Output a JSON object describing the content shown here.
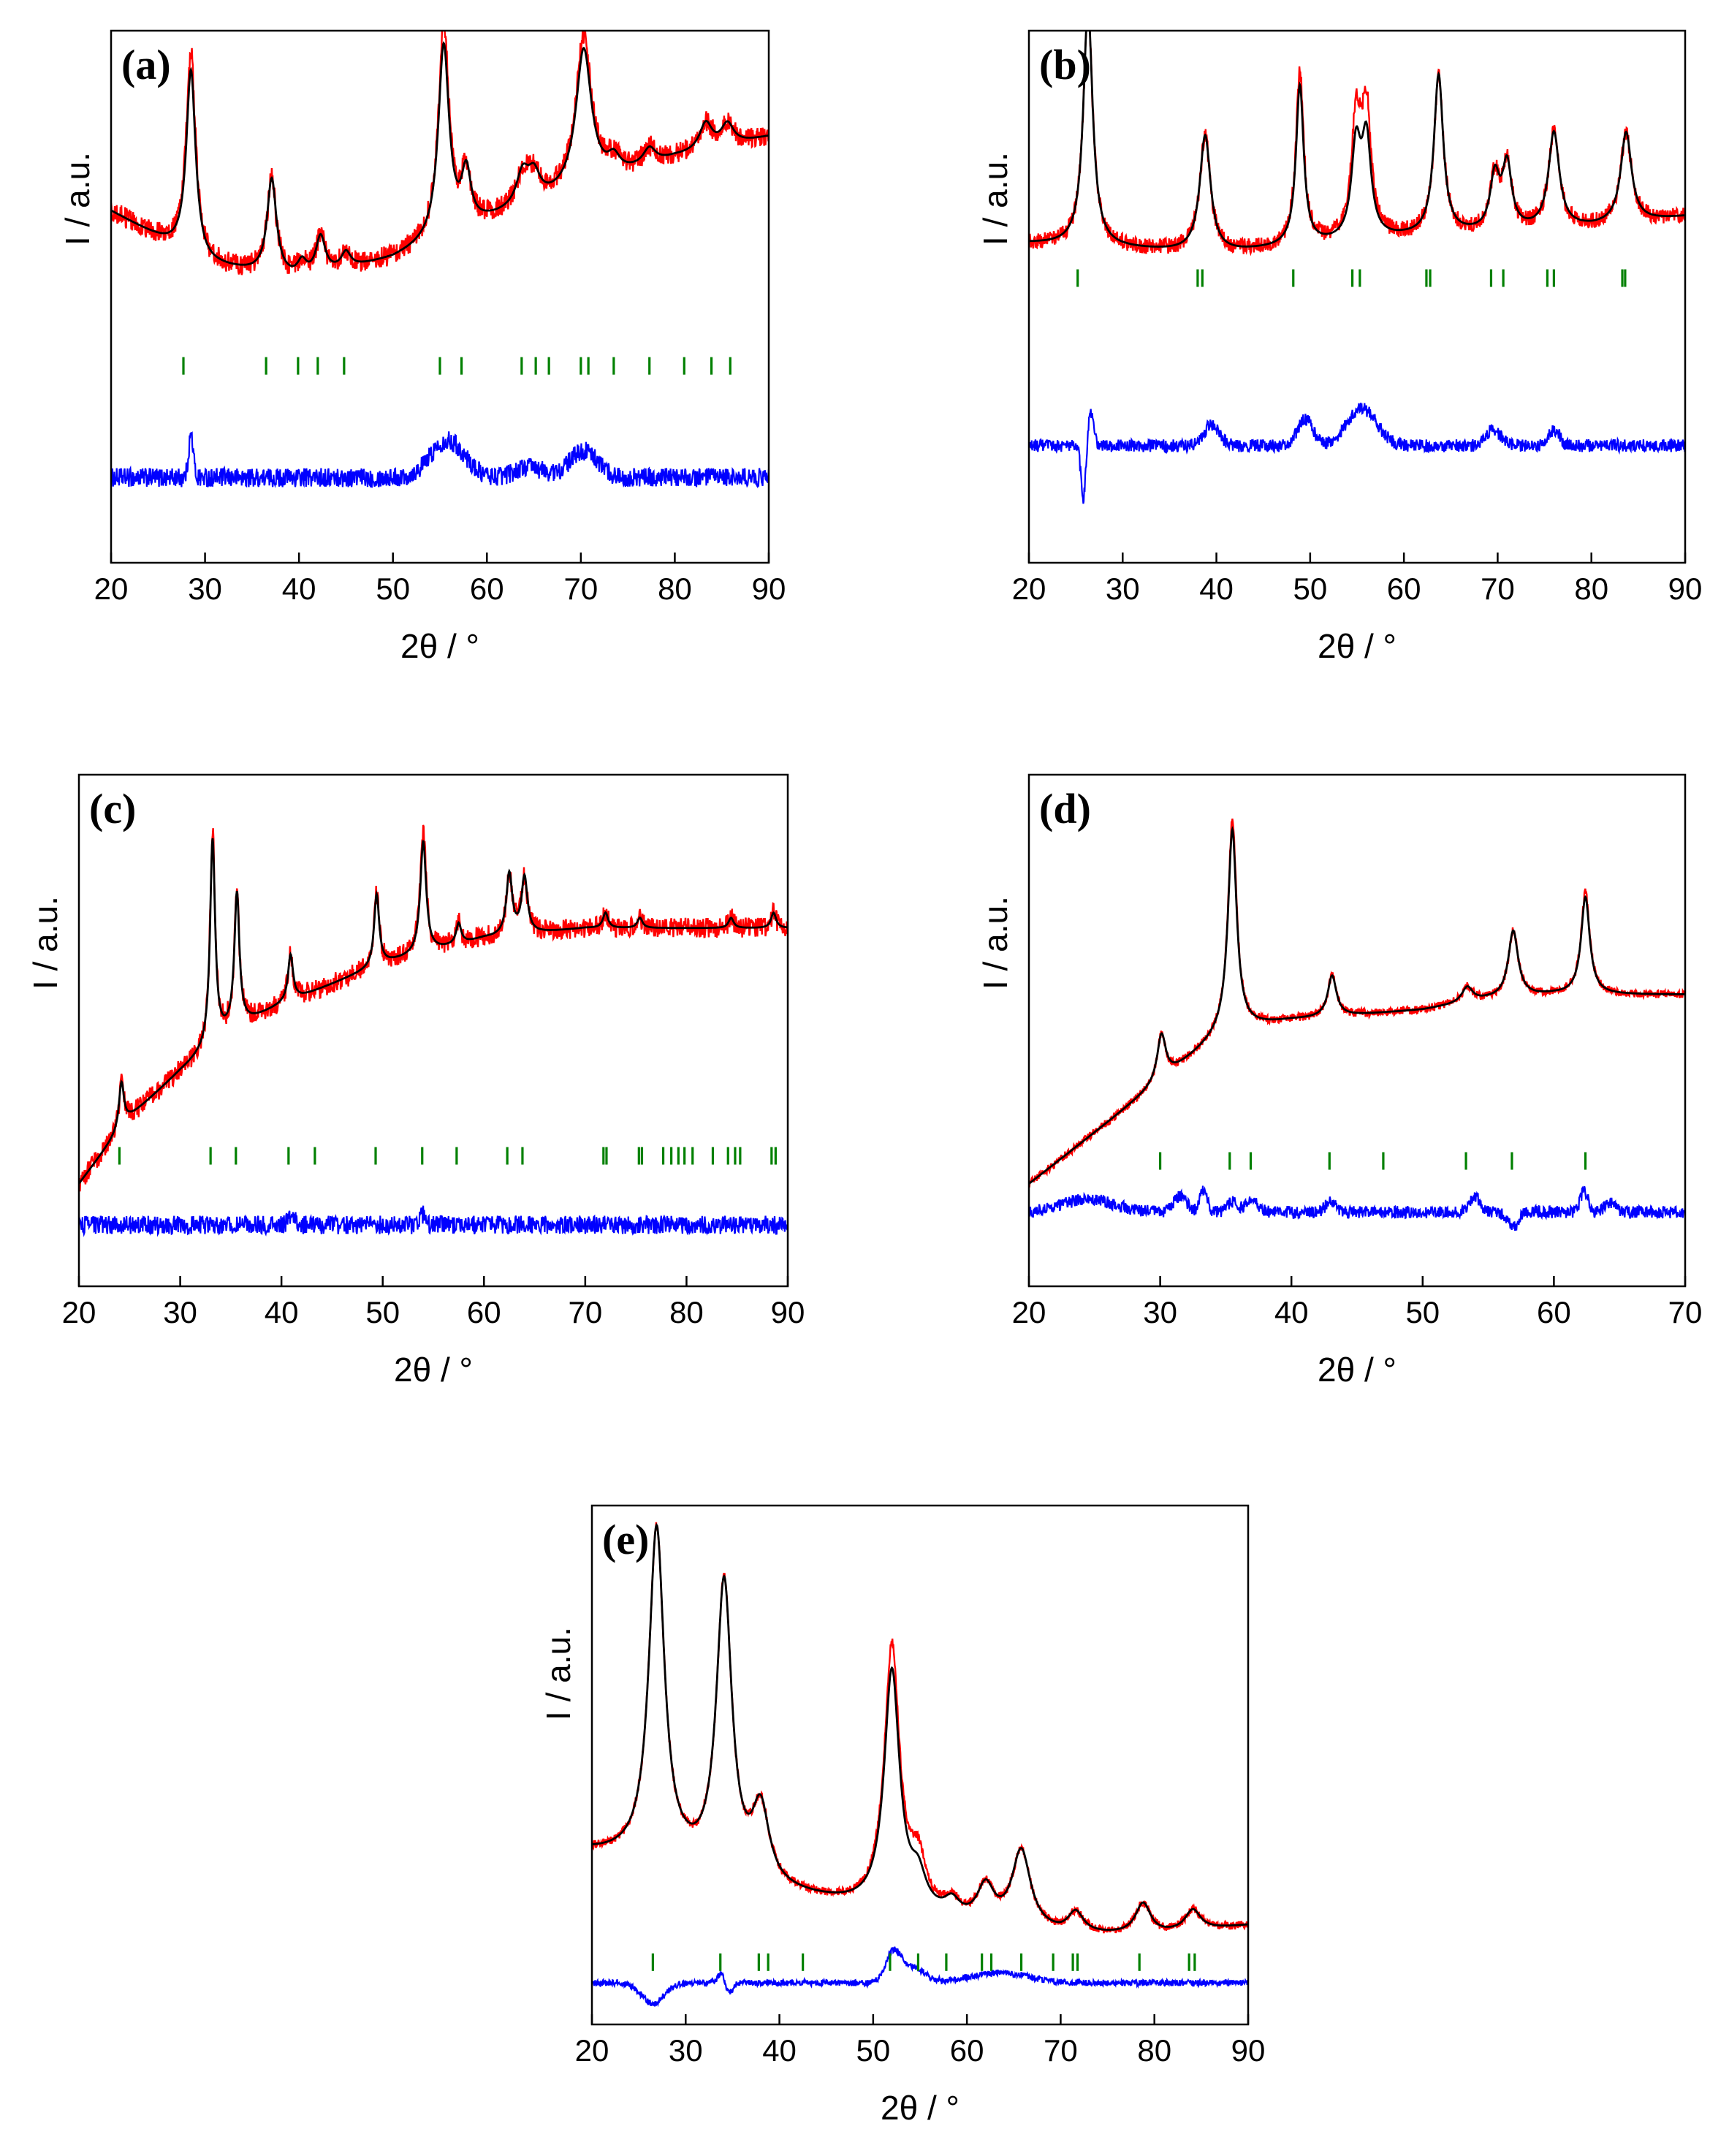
{
  "figure_description_note": "",
  "colors": {
    "observed": "#ff0000",
    "calculated": "#000000",
    "difference": "#0000ff",
    "bragg": "#008000"
  },
  "chart_data": [
    {
      "type": "line",
      "panel": "(a)",
      "xlabel": "2θ / °",
      "ylabel": "I / a.u.",
      "xlim": [
        20,
        90
      ],
      "xticks": [
        20,
        30,
        40,
        50,
        60,
        70,
        80,
        90
      ],
      "series_names": [
        "observed",
        "calculated",
        "difference",
        "Bragg positions"
      ],
      "background": [
        [
          20,
          0.66
        ],
        [
          30,
          0.56
        ],
        [
          40,
          0.53
        ],
        [
          50,
          0.57
        ],
        [
          60,
          0.64
        ],
        [
          70,
          0.7
        ],
        [
          80,
          0.76
        ],
        [
          90,
          0.8
        ]
      ],
      "peaks": [
        [
          28.5,
          0.35,
          0.6
        ],
        [
          37.1,
          0.18,
          0.6
        ],
        [
          40.3,
          0.03,
          0.6
        ],
        [
          42.3,
          0.07,
          0.6
        ],
        [
          45.0,
          0.03,
          0.6
        ],
        [
          55.4,
          0.36,
          0.7
        ],
        [
          57.8,
          0.1,
          0.6
        ],
        [
          63.8,
          0.06,
          0.8
        ],
        [
          65.0,
          0.05,
          0.8
        ],
        [
          70.3,
          0.26,
          1.0
        ],
        [
          73.5,
          0.03,
          0.8
        ],
        [
          77.3,
          0.03,
          0.8
        ],
        [
          83.3,
          0.05,
          0.8
        ],
        [
          85.6,
          0.04,
          0.8
        ]
      ],
      "bragg": [
        27.7,
        36.5,
        39.9,
        42.0,
        44.8,
        55.0,
        57.3,
        63.7,
        65.2,
        66.6,
        70.0,
        70.8,
        73.5,
        77.3,
        81.0,
        83.9,
        85.9
      ],
      "bragg_y": 0.37,
      "diff_base": 0.16,
      "diff_noise": 0.018,
      "diff_features": [
        [
          28.5,
          0.08,
          0.25
        ],
        [
          55.8,
          0.07,
          1.8
        ],
        [
          70.3,
          0.05,
          1.5
        ],
        [
          64.5,
          0.02,
          1.5
        ]
      ],
      "obs_noise": 0.02,
      "obs_scale": [
        [
          28.5,
          1.1
        ],
        [
          55.4,
          1.1
        ],
        [
          70.3,
          1.1
        ]
      ]
    },
    {
      "type": "line",
      "panel": "(b)",
      "xlabel": "2θ / °",
      "ylabel": "I / a.u.",
      "xlim": [
        20,
        90
      ],
      "xticks": [
        20,
        30,
        40,
        50,
        60,
        70,
        80,
        90
      ],
      "series_names": [
        "observed",
        "calculated",
        "difference",
        "Bragg positions"
      ],
      "background": [
        [
          20,
          0.6
        ],
        [
          40,
          0.58
        ],
        [
          60,
          0.61
        ],
        [
          80,
          0.63
        ],
        [
          90,
          0.65
        ]
      ],
      "peaks": [
        [
          26.3,
          0.45,
          0.6
        ],
        [
          38.8,
          0.22,
          0.7
        ],
        [
          48.9,
          0.3,
          0.5
        ],
        [
          54.9,
          0.17,
          0.6
        ],
        [
          56.0,
          0.18,
          0.6
        ],
        [
          63.7,
          0.3,
          0.6
        ],
        [
          69.7,
          0.1,
          0.6
        ],
        [
          71.0,
          0.12,
          0.6
        ],
        [
          76.0,
          0.18,
          0.7
        ],
        [
          83.7,
          0.17,
          0.7
        ]
      ],
      "bragg": [
        25.2,
        38.0,
        38.5,
        48.2,
        54.5,
        55.3,
        62.4,
        62.8,
        69.3,
        70.6,
        75.3,
        76.0,
        83.3,
        83.6
      ],
      "bragg_y": 0.535,
      "diff_base": 0.22,
      "diff_noise": 0.012,
      "diff_features": [
        [
          25.8,
          -0.1,
          0.25
        ],
        [
          26.6,
          0.06,
          0.3
        ],
        [
          39.5,
          0.04,
          0.8
        ],
        [
          49.5,
          0.05,
          0.8
        ],
        [
          55.5,
          0.07,
          1.6
        ],
        [
          69.5,
          0.03,
          0.8
        ],
        [
          76.0,
          0.03,
          0.6
        ]
      ],
      "obs_noise": 0.015,
      "obs_scale": [
        [
          48.9,
          1.1
        ],
        [
          54.9,
          1.3
        ],
        [
          56.0,
          1.3
        ]
      ]
    },
    {
      "type": "line",
      "panel": "(c)",
      "xlabel": "2θ / °",
      "ylabel": "I / a.u.",
      "xlim": [
        20,
        90
      ],
      "xticks": [
        20,
        30,
        40,
        50,
        60,
        70,
        80,
        90
      ],
      "series_names": [
        "observed",
        "calculated",
        "difference",
        "Bragg positions"
      ],
      "background": [
        [
          20,
          0.2
        ],
        [
          25,
          0.33
        ],
        [
          30,
          0.42
        ],
        [
          35,
          0.5
        ],
        [
          40,
          0.55
        ],
        [
          50,
          0.63
        ],
        [
          60,
          0.68
        ],
        [
          70,
          0.7
        ],
        [
          90,
          0.7
        ]
      ],
      "peaks": [
        [
          24.2,
          0.09,
          0.3
        ],
        [
          33.2,
          0.4,
          0.3
        ],
        [
          35.6,
          0.26,
          0.3
        ],
        [
          40.9,
          0.09,
          0.3
        ],
        [
          49.4,
          0.14,
          0.3
        ],
        [
          54.0,
          0.22,
          0.35
        ],
        [
          57.5,
          0.04,
          0.3
        ],
        [
          62.5,
          0.12,
          0.35
        ],
        [
          64.0,
          0.11,
          0.35
        ],
        [
          72.0,
          0.03,
          0.3
        ],
        [
          75.4,
          0.02,
          0.3
        ],
        [
          84.4,
          0.02,
          0.3
        ],
        [
          88.6,
          0.03,
          0.3
        ]
      ],
      "bragg": [
        24.0,
        33.0,
        35.5,
        40.7,
        43.3,
        49.3,
        53.9,
        57.3,
        62.3,
        63.8,
        71.8,
        72.1,
        75.3,
        75.6,
        77.7,
        78.5,
        79.2,
        79.8,
        80.6,
        82.6,
        84.1,
        84.8,
        85.3,
        88.4,
        88.8
      ],
      "bragg_y": 0.255,
      "diff_base": 0.12,
      "diff_noise": 0.018,
      "diff_features": [
        [
          41.0,
          0.02,
          0.3
        ],
        [
          54.0,
          0.02,
          0.3
        ]
      ],
      "obs_noise": 0.02,
      "obs_scale": [
        [
          33.2,
          1.05
        ],
        [
          54.0,
          1.1
        ]
      ]
    },
    {
      "type": "line",
      "panel": "(d)",
      "xlabel": "2θ / °",
      "ylabel": "I / a.u.",
      "xlim": [
        20,
        70
      ],
      "xticks": [
        20,
        30,
        40,
        50,
        60,
        70
      ],
      "series_names": [
        "observed",
        "calculated",
        "difference",
        "Bragg positions"
      ],
      "background": [
        [
          20,
          0.2
        ],
        [
          25,
          0.3
        ],
        [
          30,
          0.4
        ],
        [
          35,
          0.5
        ],
        [
          40,
          0.52
        ],
        [
          50,
          0.54
        ],
        [
          55,
          0.56
        ],
        [
          60,
          0.57
        ],
        [
          70,
          0.57
        ]
      ],
      "peaks": [
        [
          30.1,
          0.09,
          0.4
        ],
        [
          35.5,
          0.39,
          0.4
        ],
        [
          43.1,
          0.08,
          0.4
        ],
        [
          53.4,
          0.03,
          0.5
        ],
        [
          56.9,
          0.13,
          0.45
        ],
        [
          62.4,
          0.19,
          0.4
        ]
      ],
      "bragg": [
        30.0,
        35.3,
        36.9,
        42.9,
        47.0,
        53.3,
        56.8,
        62.4
      ],
      "bragg_y": 0.245,
      "diff_base": 0.145,
      "diff_noise": 0.012,
      "diff_features": [
        [
          24.5,
          0.025,
          2.0
        ],
        [
          31.5,
          0.03,
          0.5
        ],
        [
          33.3,
          0.04,
          0.3
        ],
        [
          35.5,
          0.02,
          0.4
        ],
        [
          37.0,
          0.02,
          0.5
        ],
        [
          43.0,
          0.02,
          0.4
        ],
        [
          54.0,
          0.03,
          0.4
        ],
        [
          56.9,
          -0.03,
          0.4
        ],
        [
          62.3,
          0.04,
          0.3
        ],
        [
          64.3,
          0.02,
          0.4
        ]
      ],
      "obs_noise": 0.008,
      "obs_scale": [
        [
          35.5,
          1.05
        ],
        [
          62.4,
          1.05
        ]
      ]
    },
    {
      "type": "line",
      "panel": "(e)",
      "xlabel": "2θ / °",
      "ylabel": "I / a.u.",
      "xlim": [
        20,
        90
      ],
      "xticks": [
        20,
        30,
        40,
        50,
        60,
        70,
        80,
        90
      ],
      "series_names": [
        "observed",
        "calculated",
        "difference",
        "Bragg positions"
      ],
      "background": [
        [
          20,
          0.33
        ],
        [
          30,
          0.3
        ],
        [
          40,
          0.25
        ],
        [
          50,
          0.22
        ],
        [
          60,
          0.19
        ],
        [
          70,
          0.17
        ],
        [
          80,
          0.17
        ],
        [
          90,
          0.19
        ]
      ],
      "peaks": [
        [
          26.9,
          0.64,
          1.0
        ],
        [
          34.1,
          0.56,
          1.0
        ],
        [
          38.0,
          0.14,
          1.1
        ],
        [
          52.0,
          0.46,
          1.0
        ],
        [
          54.8,
          0.06,
          1.0
        ],
        [
          58.4,
          0.03,
          1.0
        ],
        [
          62.0,
          0.07,
          1.1
        ],
        [
          65.8,
          0.15,
          1.2
        ],
        [
          71.6,
          0.04,
          1.0
        ],
        [
          78.8,
          0.06,
          1.0
        ],
        [
          84.1,
          0.04,
          1.0
        ]
      ],
      "bragg": [
        26.5,
        33.7,
        37.8,
        38.8,
        42.5,
        51.8,
        54.8,
        57.8,
        61.6,
        62.6,
        65.8,
        69.2,
        71.3,
        71.8,
        78.4,
        83.7,
        84.3
      ],
      "bragg_y": 0.12,
      "diff_base": 0.08,
      "diff_noise": 0.006,
      "diff_features": [
        [
          26.5,
          -0.04,
          1.2
        ],
        [
          33.8,
          0.02,
          0.4
        ],
        [
          34.6,
          -0.02,
          0.4
        ],
        [
          52.1,
          0.05,
          0.8
        ],
        [
          54.0,
          0.03,
          1.5
        ],
        [
          63.5,
          0.02,
          3.0
        ]
      ],
      "obs_noise": 0.008,
      "obs_scale": [
        [
          52.0,
          1.1
        ],
        [
          54.8,
          1.5
        ]
      ]
    }
  ]
}
